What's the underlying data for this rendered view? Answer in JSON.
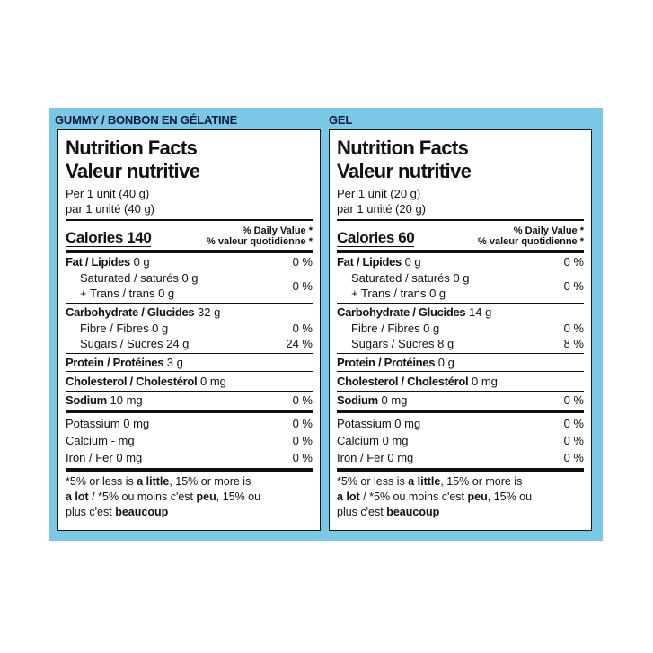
{
  "panels": [
    {
      "header": "GUMMY / BONBON EN GÉLATINE",
      "title_en": "Nutrition Facts",
      "title_fr": "Valeur nutritive",
      "serving_en": "Per 1 unit (40 g)",
      "serving_fr": "par 1 unité (40 g)",
      "calories": "Calories 140",
      "dv_en": "% Daily Value *",
      "dv_fr": "% valeur quotidienne *",
      "fat": {
        "label": "Fat / Lipides",
        "amount": "0 g",
        "dv": "0 %"
      },
      "saturated": "Saturated / saturés 0 g",
      "trans": "+ Trans / trans 0 g",
      "sat_trans_dv": "0 %",
      "carb": {
        "label": "Carbohydrate / Glucides",
        "amount": "32 g"
      },
      "fibre": {
        "label": "Fibre / Fibres 0 g",
        "dv": "0 %"
      },
      "sugars": {
        "label": "Sugars / Sucres 24 g",
        "dv": "24 %"
      },
      "protein": {
        "label": "Protein / Protéines",
        "amount": "3 g"
      },
      "cholesterol": {
        "label": "Cholesterol / Cholestérol",
        "amount": "0 mg"
      },
      "sodium": {
        "label": "Sodium",
        "amount": "10 mg",
        "dv": "0 %"
      },
      "potassium": {
        "label": "Potassium 0 mg",
        "dv": "0 %"
      },
      "calcium": {
        "label": "Calcium - mg",
        "dv": "0 %"
      },
      "iron": {
        "label": "Iron / Fer 0 mg",
        "dv": "0 %"
      },
      "footnote": {
        "p1": "*5% or less is ",
        "b1": "a little",
        "p2": ", 15% or more is",
        "b2": "a lot",
        "p3": " / *5% ou moins c'est ",
        "b3": "peu",
        "p4": ", 15% ou",
        "p5": "plus c'est ",
        "b4": "beaucoup"
      }
    },
    {
      "header": "GEL",
      "title_en": "Nutrition Facts",
      "title_fr": "Valeur nutritive",
      "serving_en": "Per 1 unit (20 g)",
      "serving_fr": "par 1 unité (20 g)",
      "calories": "Calories 60",
      "dv_en": "% Daily Value *",
      "dv_fr": "% valeur quotidienne *",
      "fat": {
        "label": "Fat / Lipides",
        "amount": "0 g",
        "dv": "0 %"
      },
      "saturated": "Saturated / saturés 0 g",
      "trans": "+ Trans / trans 0 g",
      "sat_trans_dv": "0 %",
      "carb": {
        "label": "Carbohydrate / Glucides",
        "amount": "14 g"
      },
      "fibre": {
        "label": "Fibre / Fibres 0 g",
        "dv": "0 %"
      },
      "sugars": {
        "label": "Sugars / Sucres 8 g",
        "dv": "8 %"
      },
      "protein": {
        "label": "Protein / Protéines",
        "amount": "0 g"
      },
      "cholesterol": {
        "label": "Cholesterol / Cholestérol",
        "amount": "0 mg"
      },
      "sodium": {
        "label": "Sodium",
        "amount": "0 mg",
        "dv": "0 %"
      },
      "potassium": {
        "label": "Potassium 0 mg",
        "dv": "0 %"
      },
      "calcium": {
        "label": "Calcium 0 mg",
        "dv": "0 %"
      },
      "iron": {
        "label": "Iron / Fer 0 mg",
        "dv": "0 %"
      },
      "footnote": {
        "p1": "*5% or less is ",
        "b1": "a little",
        "p2": ", 15% or more is",
        "b2": "a lot",
        "p3": " / *5% ou moins c'est ",
        "b3": "peu",
        "p4": ", 15% ou",
        "p5": "plus c'est ",
        "b4": "beaucoup"
      }
    }
  ],
  "colors": {
    "band": "#7ac8e6",
    "header_text": "#0d1a3a"
  }
}
